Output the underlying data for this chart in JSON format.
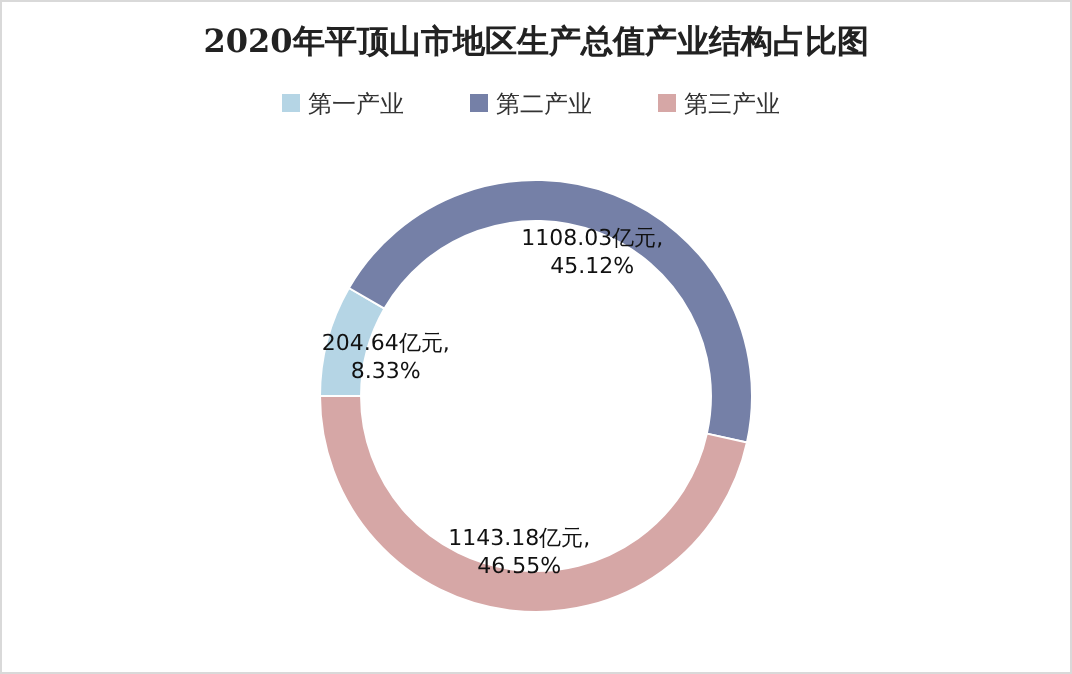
{
  "chart_data": {
    "type": "donut",
    "title": "2020年平顶山市地区生产总值产业结构占比图",
    "categories": [
      "第一产业",
      "第二产业",
      "第三产业"
    ],
    "values": [
      204.64,
      1108.03,
      1143.18
    ],
    "value_labels": [
      "204.64亿元,\n8.33%",
      "1108.03亿元,\n45.12%",
      "1143.18亿元,\n46.55%"
    ],
    "colors": [
      "#b5d5e5",
      "#7580a7",
      "#d6a7a6"
    ],
    "legend": "top"
  }
}
